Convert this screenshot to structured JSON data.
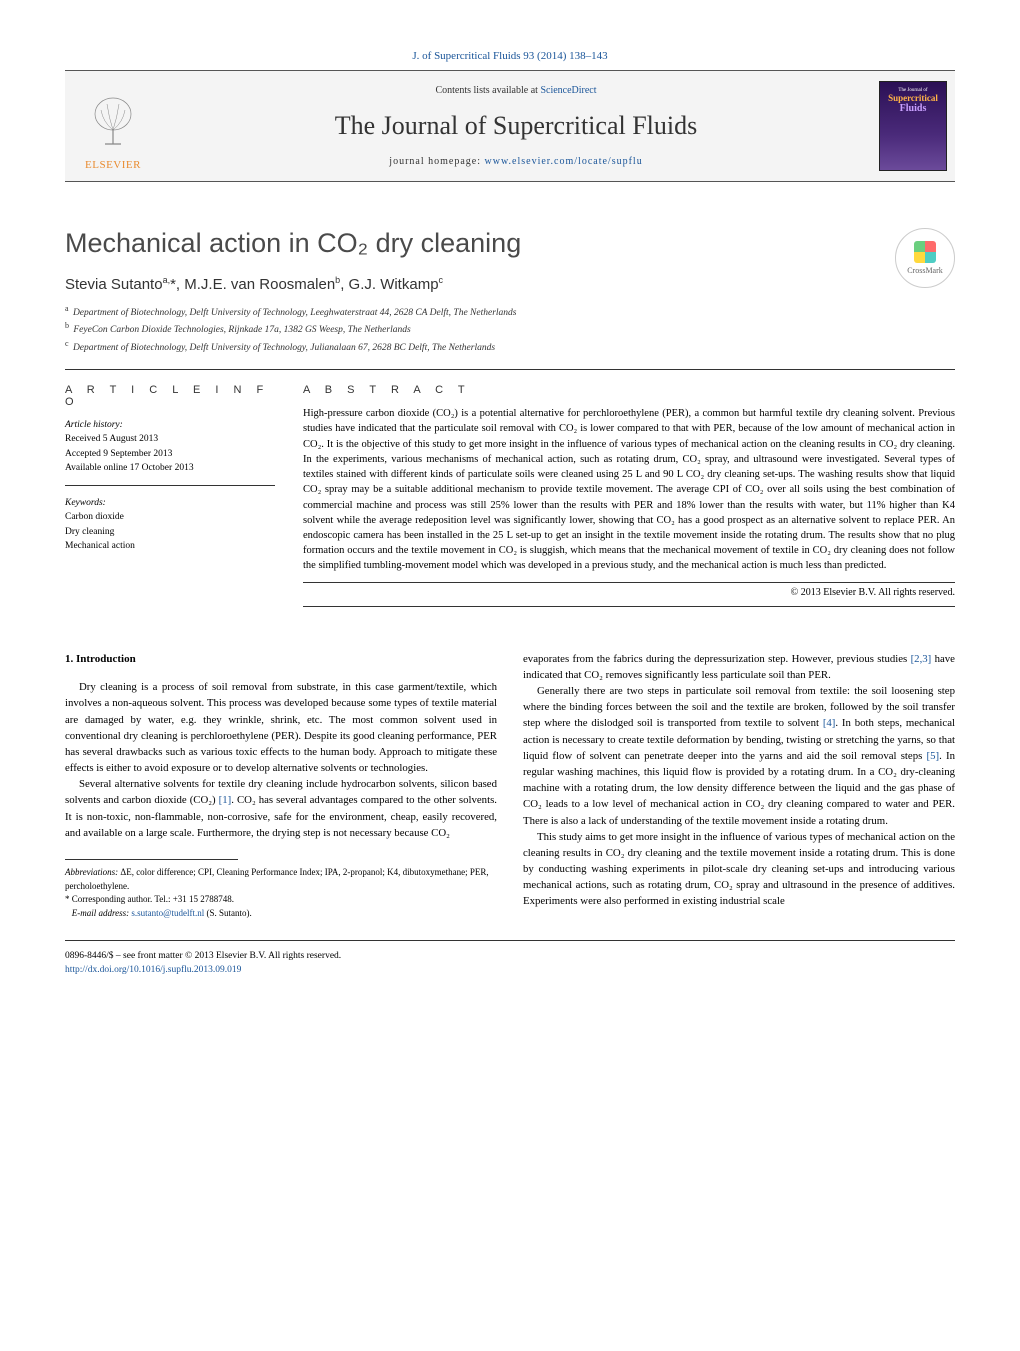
{
  "citation": "J. of Supercritical Fluids 93 (2014) 138–143",
  "header": {
    "contents_prefix": "Contents lists available at ",
    "contents_link": "ScienceDirect",
    "journal_title": "The Journal of Supercritical Fluids",
    "homepage_prefix": "journal homepage: ",
    "homepage_link": "www.elsevier.com/locate/supflu",
    "publisher": "ELSEVIER",
    "cover_line1": "Supercritical",
    "cover_line2": "Fluids"
  },
  "article": {
    "title": "Mechanical action in CO₂ dry cleaning",
    "crossmark": "CrossMark",
    "authors_html": "Stevia Sutanto<sup>a,</sup>*, M.J.E. van Roosmalen<sup>b</sup>, G.J. Witkamp<sup>c</sup>",
    "affiliations": {
      "a": "Department of Biotechnology, Delft University of Technology, Leeghwaterstraat 44, 2628 CA Delft, The Netherlands",
      "b": "FeyeCon Carbon Dioxide Technologies, Rijnkade 17a, 1382 GS Weesp, The Netherlands",
      "c": "Department of Biotechnology, Delft University of Technology, Julianalaan 67, 2628 BC Delft, The Netherlands"
    }
  },
  "info": {
    "heading": "A R T I C L E    I N F O",
    "history_label": "Article history:",
    "received": "Received 5 August 2013",
    "accepted": "Accepted 9 September 2013",
    "online": "Available online 17 October 2013",
    "keywords_label": "Keywords:",
    "keywords": [
      "Carbon dioxide",
      "Dry cleaning",
      "Mechanical action"
    ]
  },
  "abstract": {
    "heading": "A B S T R A C T",
    "text": "High-pressure carbon dioxide (CO₂) is a potential alternative for perchloroethylene (PER), a common but harmful textile dry cleaning solvent. Previous studies have indicated that the particulate soil removal with CO₂ is lower compared to that with PER, because of the low amount of mechanical action in CO₂. It is the objective of this study to get more insight in the influence of various types of mechanical action on the cleaning results in CO₂ dry cleaning. In the experiments, various mechanisms of mechanical action, such as rotating drum, CO₂ spray, and ultrasound were investigated. Several types of textiles stained with different kinds of particulate soils were cleaned using 25 L and 90 L CO₂ dry cleaning set-ups. The washing results show that liquid CO₂ spray may be a suitable additional mechanism to provide textile movement. The average CPI of CO₂ over all soils using the best combination of commercial machine and process was still 25% lower than the results with PER and 18% lower than the results with water, but 11% higher than K4 solvent while the average redeposition level was significantly lower, showing that CO₂ has a good prospect as an alternative solvent to replace PER. An endoscopic camera has been installed in the 25 L set-up to get an insight in the textile movement inside the rotating drum. The results show that no plug formation occurs and the textile movement in CO₂ is sluggish, which means that the mechanical movement of textile in CO₂ dry cleaning does not follow the simplified tumbling-movement model which was developed in a previous study, and the mechanical action is much less than predicted.",
    "copyright": "© 2013 Elsevier B.V. All rights reserved."
  },
  "body": {
    "section_heading": "1.  Introduction",
    "p1": "Dry cleaning is a process of soil removal from substrate, in this case garment/textile, which involves a non-aqueous solvent. This process was developed because some types of textile material are damaged by water, e.g. they wrinkle, shrink, etc. The most common solvent used in conventional dry cleaning is perchloroethylene (PER). Despite its good cleaning performance, PER has several drawbacks such as various toxic effects to the human body. Approach to mitigate these effects is either to avoid exposure or to develop alternative solvents or technologies.",
    "p2a": "Several alternative solvents for textile dry cleaning include hydrocarbon solvents, silicon based solvents and carbon dioxide (CO₂) ",
    "p2_ref1": "[1]",
    "p2b": ". CO₂ has several advantages compared to the other solvents. It is non-toxic, non-flammable, non-corrosive, safe for the environment, cheap, easily recovered, and available on a large scale. Furthermore, the drying step is not necessary because CO₂",
    "p3a": "evaporates from the fabrics during the depressurization step. However, previous studies ",
    "p3_ref": "[2,3]",
    "p3b": " have indicated that CO₂ removes significantly less particulate soil than PER.",
    "p4a": "Generally there are two steps in particulate soil removal from textile: the soil loosening step where the binding forces between the soil and the textile are broken, followed by the soil transfer step where the dislodged soil is transported from textile to solvent ",
    "p4_ref1": "[4]",
    "p4b": ". In both steps, mechanical action is necessary to create textile deformation by bending, twisting or stretching the yarns, so that liquid flow of solvent can penetrate deeper into the yarns and aid the soil removal steps ",
    "p4_ref2": "[5]",
    "p4c": ". In regular washing machines, this liquid flow is provided by a rotating drum. In a CO₂ dry-cleaning machine with a rotating drum, the low density difference between the liquid and the gas phase of CO₂ leads to a low level of mechanical action in CO₂ dry cleaning compared to water and PER. There is also a lack of understanding of the textile movement inside a rotating drum.",
    "p5": "This study aims to get more insight in the influence of various types of mechanical action on the cleaning results in CO₂ dry cleaning and the textile movement inside a rotating drum. This is done by conducting washing experiments in pilot-scale dry cleaning set-ups and introducing various mechanical actions, such as rotating drum, CO₂ spray and ultrasound in the presence of additives. Experiments were also performed in existing industrial scale"
  },
  "footnotes": {
    "abbrev_label": "Abbreviations:",
    "abbrev_text": " ΔE, color difference; CPI, Cleaning Performance Index; IPA, 2-propanol; K4, dibutoxymethane; PER, percholoethylene.",
    "corr_label": "* Corresponding author. Tel.: +31 15 2788748.",
    "email_label": "E-mail address:",
    "email": "s.sutanto@tudelft.nl",
    "email_suffix": " (S. Sutanto)."
  },
  "footer": {
    "issn": "0896-8446/$ – see front matter © 2013 Elsevier B.V. All rights reserved.",
    "doi": "http://dx.doi.org/10.1016/j.supflu.2013.09.019"
  },
  "colors": {
    "link": "#1a5599",
    "publisher": "#e98b2f"
  }
}
